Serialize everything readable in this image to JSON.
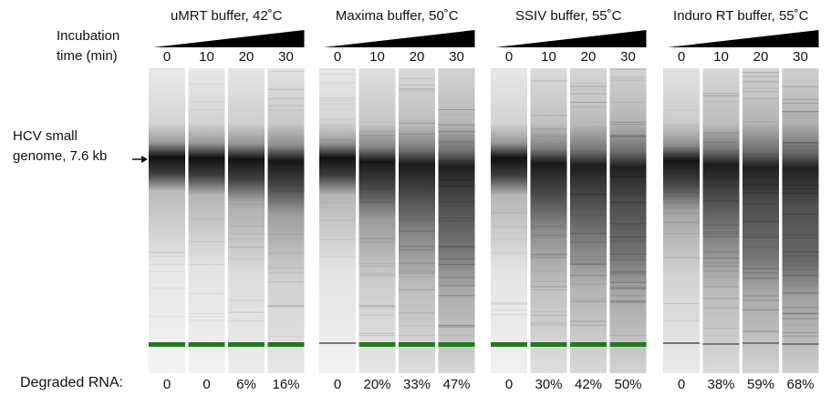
{
  "incubation_label": [
    "Incubation",
    "time (min)"
  ],
  "band_label": [
    "HCV small",
    "genome, 7.6 kb"
  ],
  "degraded_label": "Degraded RNA:",
  "panels": [
    {
      "title": "uMRT buffer, 42˚C",
      "lanes": [
        "0",
        "10",
        "20",
        "30"
      ],
      "degraded": [
        "0",
        "0",
        "6%",
        "16%"
      ]
    },
    {
      "title": "Maxima buffer, 50˚C",
      "lanes": [
        "0",
        "10",
        "20",
        "30"
      ],
      "degraded": [
        "0",
        "20%",
        "33%",
        "47%"
      ]
    },
    {
      "title": "SSIV buffer, 55˚C",
      "lanes": [
        "0",
        "10",
        "20",
        "30"
      ],
      "degraded": [
        "0",
        "30%",
        "42%",
        "50%"
      ]
    },
    {
      "title": "Induro RT buffer, 55˚C",
      "lanes": [
        "0",
        "10",
        "20",
        "30"
      ],
      "degraded": [
        "0",
        "38%",
        "59%",
        "68%"
      ]
    }
  ]
}
